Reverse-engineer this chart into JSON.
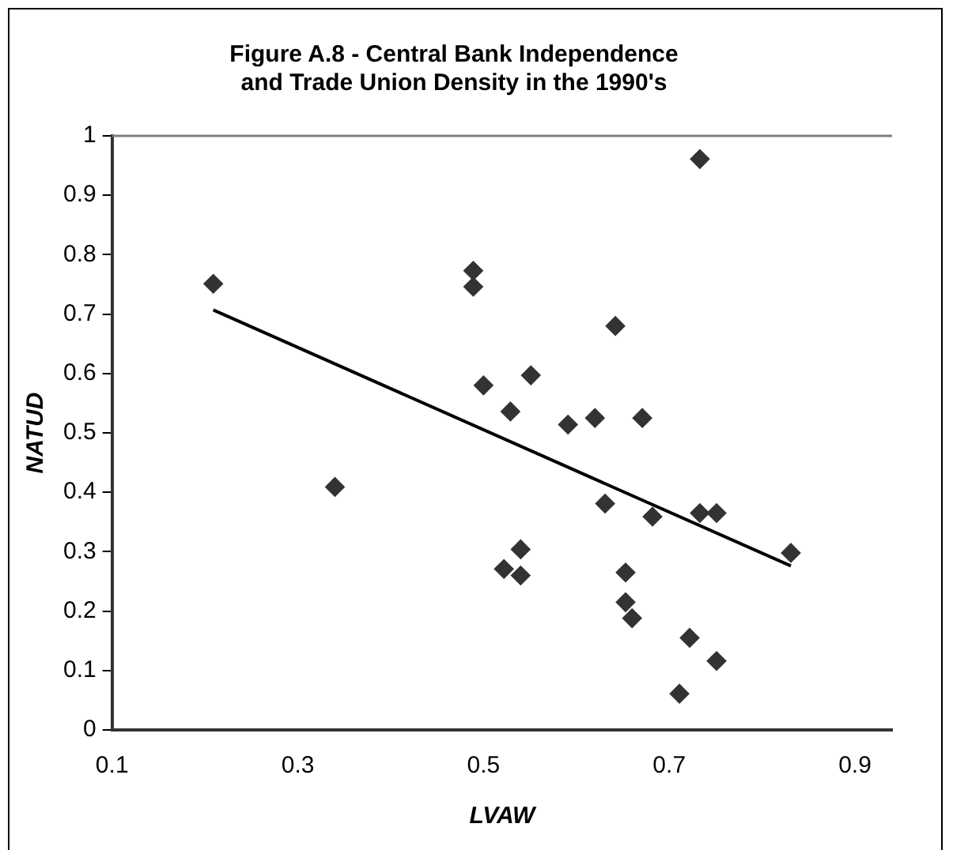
{
  "chart_data": {
    "type": "scatter",
    "title": "Figure A.8 - Central Bank Independence\nand Trade Union Density in the 1990's",
    "xlabel": "LVAW",
    "ylabel": "NATUD",
    "xlim": [
      0.1,
      0.94
    ],
    "xticks": [
      0.1,
      0.3,
      0.5,
      0.7,
      0.9
    ],
    "ylim": [
      0,
      1
    ],
    "yticks": [
      0,
      0.1,
      0.2,
      0.3,
      0.4,
      0.5,
      0.6,
      0.7,
      0.8,
      0.9,
      1
    ],
    "grid": false,
    "legend": false,
    "marker": "diamond",
    "series": [
      {
        "color": "#333333",
        "x": [
          0.209,
          0.489,
          0.489,
          0.5,
          0.529,
          0.551,
          0.733,
          0.642,
          0.591,
          0.62,
          0.671,
          0.34,
          0.522,
          0.54,
          0.54,
          0.631,
          0.682,
          0.733,
          0.751,
          0.831,
          0.653,
          0.653,
          0.66,
          0.722,
          0.751,
          0.711
        ],
        "values": [
          0.751,
          0.773,
          0.746,
          0.58,
          0.536,
          0.597,
          0.961,
          0.68,
          0.514,
          0.525,
          0.525,
          0.409,
          0.271,
          0.304,
          0.26,
          0.381,
          0.359,
          0.365,
          0.365,
          0.298,
          0.265,
          0.215,
          0.188,
          0.155,
          0.116,
          0.061
        ]
      },
      {
        "type": "line",
        "color": "#000000",
        "x": [
          0.209,
          0.831
        ],
        "values": [
          0.707,
          0.276
        ],
        "marker": "none"
      }
    ]
  }
}
